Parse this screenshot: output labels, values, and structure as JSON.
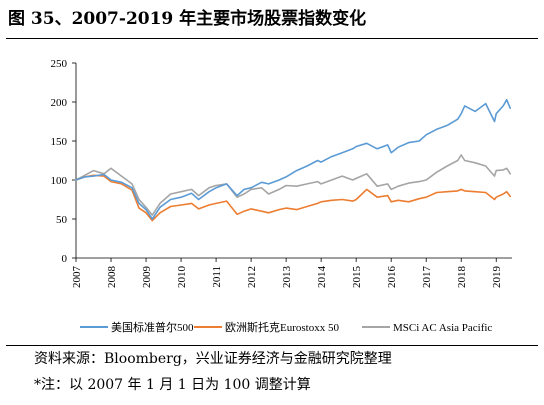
{
  "figure_title": "图 35、2007-2019 年主要市场股票指数变化",
  "source_text": "资料来源：Bloomberg，兴业证券经济与金融研究院整理",
  "footnote_text": "*注：以 2007 年 1 月 1 日为 100 调整计算",
  "chart_data": {
    "type": "line",
    "title": "",
    "xlabel": "",
    "ylabel": "",
    "ylim": [
      0,
      250
    ],
    "yticks": [
      0,
      50,
      100,
      150,
      200,
      250
    ],
    "xlim": [
      2007,
      2019.45
    ],
    "xticks": [
      2007,
      2008,
      2009,
      2010,
      2011,
      2012,
      2013,
      2014,
      2015,
      2016,
      2017,
      2018,
      2019
    ],
    "grid": false,
    "legend_position": "bottom",
    "series": [
      {
        "name": "美国标准普尔500",
        "color": "#5B9BD5",
        "x": [
          2007.0,
          2007.25,
          2007.5,
          2007.8,
          2008.0,
          2008.3,
          2008.6,
          2008.8,
          2009.0,
          2009.18,
          2009.4,
          2009.7,
          2010.0,
          2010.3,
          2010.5,
          2010.8,
          2011.0,
          2011.3,
          2011.6,
          2011.8,
          2012.0,
          2012.3,
          2012.5,
          2012.8,
          2013.0,
          2013.3,
          2013.6,
          2013.9,
          2014.0,
          2014.3,
          2014.6,
          2014.9,
          2015.0,
          2015.3,
          2015.6,
          2015.9,
          2016.0,
          2016.2,
          2016.5,
          2016.8,
          2017.0,
          2017.3,
          2017.6,
          2017.9,
          2018.0,
          2018.1,
          2018.4,
          2018.7,
          2018.95,
          2019.0,
          2019.2,
          2019.3,
          2019.4
        ],
        "values": [
          100,
          104,
          105,
          107,
          100,
          97,
          90,
          70,
          62,
          50,
          65,
          75,
          78,
          83,
          75,
          85,
          90,
          95,
          80,
          88,
          90,
          97,
          95,
          100,
          104,
          112,
          118,
          125,
          123,
          130,
          135,
          140,
          143,
          147,
          140,
          145,
          135,
          142,
          148,
          150,
          158,
          165,
          170,
          178,
          185,
          195,
          188,
          198,
          175,
          185,
          195,
          203,
          192
        ]
      },
      {
        "name": "欧洲斯托克Eurostoxx 50",
        "color": "#ED7D31",
        "x": [
          2007.0,
          2007.25,
          2007.5,
          2007.8,
          2008.0,
          2008.3,
          2008.6,
          2008.8,
          2009.0,
          2009.18,
          2009.4,
          2009.7,
          2010.0,
          2010.3,
          2010.5,
          2010.8,
          2011.0,
          2011.3,
          2011.6,
          2011.8,
          2012.0,
          2012.3,
          2012.5,
          2012.8,
          2013.0,
          2013.3,
          2013.6,
          2013.9,
          2014.0,
          2014.3,
          2014.6,
          2014.9,
          2015.0,
          2015.3,
          2015.6,
          2015.9,
          2016.0,
          2016.2,
          2016.5,
          2016.8,
          2017.0,
          2017.3,
          2017.6,
          2017.9,
          2018.0,
          2018.1,
          2018.4,
          2018.7,
          2018.95,
          2019.0,
          2019.2,
          2019.3,
          2019.4
        ],
        "values": [
          100,
          104,
          106,
          105,
          98,
          95,
          87,
          64,
          58,
          48,
          58,
          66,
          68,
          70,
          63,
          68,
          70,
          73,
          56,
          60,
          63,
          60,
          58,
          62,
          64,
          62,
          66,
          70,
          72,
          74,
          75,
          73,
          75,
          88,
          78,
          80,
          72,
          74,
          72,
          76,
          78,
          84,
          85,
          86,
          88,
          86,
          85,
          84,
          75,
          78,
          82,
          85,
          79
        ]
      },
      {
        "name": "MSCi AC Asia Pacific",
        "color": "#A5A5A5",
        "x": [
          2007.0,
          2007.25,
          2007.5,
          2007.8,
          2008.0,
          2008.3,
          2008.6,
          2008.8,
          2009.0,
          2009.18,
          2009.4,
          2009.7,
          2010.0,
          2010.3,
          2010.5,
          2010.8,
          2011.0,
          2011.3,
          2011.6,
          2011.8,
          2012.0,
          2012.3,
          2012.5,
          2012.8,
          2013.0,
          2013.3,
          2013.6,
          2013.9,
          2014.0,
          2014.3,
          2014.6,
          2014.9,
          2015.0,
          2015.3,
          2015.6,
          2015.9,
          2016.0,
          2016.2,
          2016.5,
          2016.8,
          2017.0,
          2017.3,
          2017.6,
          2017.9,
          2018.0,
          2018.1,
          2018.4,
          2018.7,
          2018.95,
          2019.0,
          2019.2,
          2019.3,
          2019.4
        ],
        "values": [
          100,
          106,
          112,
          108,
          115,
          105,
          95,
          75,
          65,
          55,
          70,
          82,
          85,
          88,
          80,
          90,
          93,
          95,
          78,
          82,
          88,
          90,
          82,
          88,
          93,
          92,
          95,
          98,
          95,
          100,
          105,
          100,
          102,
          108,
          92,
          95,
          88,
          92,
          96,
          98,
          100,
          110,
          118,
          125,
          132,
          125,
          122,
          118,
          105,
          112,
          113,
          115,
          108
        ]
      }
    ]
  }
}
